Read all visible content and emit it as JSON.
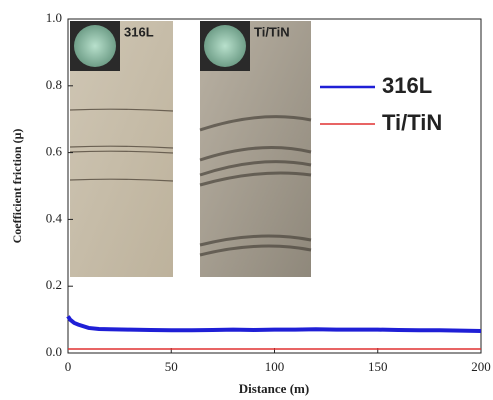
{
  "chart_data": {
    "type": "line",
    "xlabel": "Distance (m)",
    "ylabel": "Coefficient friction (μ)",
    "annotations": [
      "316L",
      "Ti/TiN"
    ],
    "x": [
      0,
      1,
      3,
      5,
      10,
      15,
      20,
      30,
      40,
      50,
      60,
      70,
      80,
      90,
      100,
      110,
      120,
      130,
      140,
      150,
      160,
      170,
      180,
      190,
      200
    ],
    "series": [
      {
        "name": "316L",
        "color": "#1f1fd6",
        "values": [
          0.11,
          0.1,
          0.09,
          0.085,
          0.075,
          0.072,
          0.071,
          0.07,
          0.069,
          0.068,
          0.068,
          0.069,
          0.07,
          0.069,
          0.07,
          0.07,
          0.071,
          0.07,
          0.07,
          0.07,
          0.069,
          0.068,
          0.068,
          0.067,
          0.066
        ]
      },
      {
        "name": "Ti/TiN",
        "color": "#e03030",
        "values": [
          0.012,
          0.012,
          0.012,
          0.012,
          0.012,
          0.012,
          0.012,
          0.012,
          0.012,
          0.012,
          0.012,
          0.012,
          0.012,
          0.012,
          0.012,
          0.012,
          0.012,
          0.012,
          0.012,
          0.012,
          0.012,
          0.012,
          0.012,
          0.012,
          0.012
        ]
      }
    ],
    "xlim": [
      0,
      200
    ],
    "xticks": [
      0,
      50,
      100,
      150,
      200
    ],
    "ylim": [
      0,
      1
    ],
    "yticks": [
      {
        "value": 0,
        "label": "0.0"
      },
      0.2,
      0.4,
      0.6,
      0.8,
      {
        "value": 1,
        "label": "1.0"
      }
    ],
    "legend": "upper right",
    "grid": false
  }
}
